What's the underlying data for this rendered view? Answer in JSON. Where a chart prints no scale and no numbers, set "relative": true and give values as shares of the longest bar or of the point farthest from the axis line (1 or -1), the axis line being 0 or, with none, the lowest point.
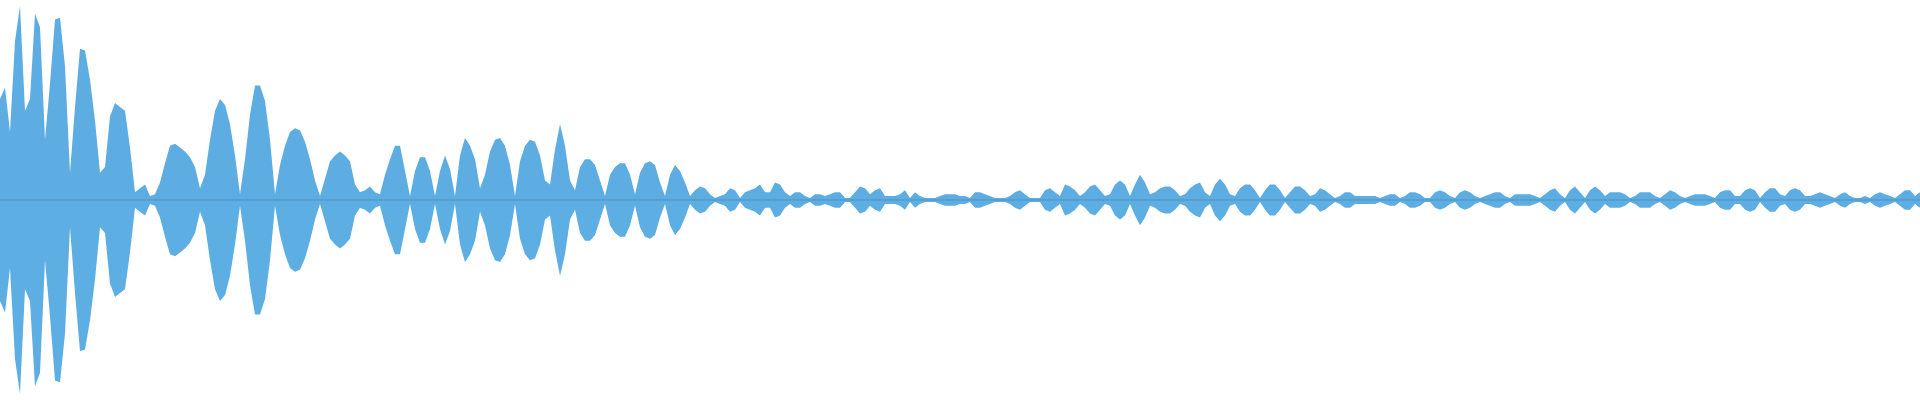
{
  "chart_data": {
    "type": "area",
    "relative": true,
    "categories": [
      null,
      null,
      null,
      null,
      null,
      null,
      null,
      null,
      null,
      null,
      null,
      null,
      null,
      null,
      null,
      null,
      null,
      null,
      null,
      null,
      null,
      null,
      null,
      null,
      null,
      null,
      null,
      null,
      null,
      null,
      null,
      null,
      null,
      null,
      null,
      null,
      null,
      null,
      null,
      null,
      null,
      null,
      null,
      null,
      null,
      null,
      null,
      null,
      null,
      null,
      null,
      null,
      null,
      null,
      null,
      null,
      null,
      null,
      null,
      null,
      null,
      null,
      null,
      null,
      null,
      null,
      null,
      null,
      null,
      null,
      null,
      null,
      null,
      null,
      null,
      null,
      null,
      null,
      null,
      null,
      null,
      null,
      null,
      null,
      null,
      null,
      null,
      null,
      null,
      null,
      null,
      null,
      null,
      null,
      null,
      null,
      null,
      null,
      null,
      null,
      null,
      null,
      null,
      null,
      null,
      null,
      null,
      null,
      null,
      null,
      null,
      null,
      null,
      null,
      null,
      null,
      null,
      null,
      null,
      null,
      null,
      null,
      null,
      null,
      null,
      null,
      null,
      null,
      null,
      null,
      null,
      null,
      null,
      null,
      null,
      null,
      null,
      null,
      null,
      null,
      null,
      null,
      null,
      null,
      null,
      null,
      null,
      null,
      null,
      null,
      null,
      null,
      null,
      null,
      null,
      null,
      null,
      null,
      null,
      null,
      null,
      null,
      null,
      null,
      null,
      null,
      null,
      null,
      null,
      null,
      null,
      null,
      null,
      null,
      null,
      null,
      null,
      null,
      null,
      null,
      null,
      null,
      null,
      null,
      null,
      null,
      null,
      null,
      null,
      null,
      null,
      null,
      null,
      null,
      null,
      null,
      null,
      null,
      null,
      null,
      null,
      null,
      null,
      null,
      null,
      null,
      null,
      null,
      null,
      null,
      null,
      null,
      null,
      null,
      null,
      null,
      null,
      null,
      null,
      null,
      null,
      null,
      null,
      null,
      null,
      null,
      null,
      null,
      null,
      null,
      null,
      null,
      null,
      null,
      null,
      null,
      null,
      null,
      null,
      null,
      null,
      null,
      null,
      null,
      null,
      null,
      null,
      null,
      null,
      null,
      null,
      null,
      null,
      null,
      null,
      null,
      null,
      null,
      null,
      null,
      null,
      null,
      null,
      null,
      null,
      null,
      null,
      null,
      null,
      null,
      null,
      null,
      null,
      null,
      null,
      null,
      null,
      null,
      null,
      null,
      null,
      null,
      null,
      null,
      null,
      null,
      null,
      null,
      null,
      null,
      null,
      null,
      null,
      null,
      null,
      null,
      null,
      null,
      null,
      null,
      null,
      null,
      null,
      null,
      null,
      null,
      null,
      null,
      null,
      null,
      null,
      null,
      null,
      null,
      null,
      null,
      null,
      null,
      null,
      null,
      null,
      null,
      null,
      null,
      null,
      null,
      null,
      null,
      null,
      null,
      null,
      null,
      null,
      null,
      null,
      null,
      null,
      null,
      null,
      null,
      null,
      null,
      null,
      null,
      null,
      null,
      null,
      null,
      null,
      null,
      null,
      null,
      null,
      null,
      null,
      null,
      null,
      null,
      null,
      null,
      null,
      null,
      null,
      null,
      null,
      null,
      null,
      null,
      null,
      null,
      null,
      null,
      null,
      null,
      null,
      null,
      null,
      null,
      null,
      null,
      null,
      null,
      null,
      null,
      null
    ],
    "series": [
      {
        "color": "#5dade2",
        "values": [
          0.52,
          0.58,
          0.35,
          0.82,
          1,
          0.46,
          0.52,
          0.96,
          0.89,
          0.31,
          0.6,
          0.93,
          0.94,
          0.69,
          0.14,
          0.48,
          0.78,
          0.77,
          0.62,
          0.41,
          0.14,
          0.17,
          0.43,
          0.5,
          0.48,
          0.46,
          0.27,
          0.04,
          0.06,
          0.08,
          0.02,
          0.03,
          0.09,
          0.19,
          0.28,
          0.29,
          0.27,
          0.25,
          0.22,
          0.17,
          0.06,
          0.13,
          0.31,
          0.46,
          0.52,
          0.49,
          0.39,
          0.23,
          0.03,
          0.21,
          0.44,
          0.59,
          0.59,
          0.51,
          0.31,
          0.03,
          0.18,
          0.28,
          0.35,
          0.37,
          0.36,
          0.3,
          0.21,
          0.1,
          0.02,
          0.11,
          0.2,
          0.23,
          0.25,
          0.23,
          0.2,
          0.08,
          0.04,
          0.05,
          0.07,
          0.04,
          0.03,
          0.13,
          0.21,
          0.28,
          0.28,
          0.15,
          0.02,
          0.15,
          0.22,
          0.22,
          0.15,
          0.02,
          0.15,
          0.23,
          0.16,
          0.02,
          0.23,
          0.32,
          0.28,
          0.21,
          0.06,
          0.13,
          0.25,
          0.31,
          0.32,
          0.28,
          0.18,
          0.02,
          0.2,
          0.28,
          0.31,
          0.3,
          0.23,
          0.1,
          0.08,
          0.26,
          0.39,
          0.28,
          0.1,
          0.05,
          0.17,
          0.21,
          0.21,
          0.18,
          0.1,
          0.02,
          0.13,
          0.17,
          0.19,
          0.19,
          0.13,
          0.03,
          0.14,
          0.19,
          0.2,
          0.18,
          0.09,
          0.02,
          0.13,
          0.18,
          0.15,
          0.09,
          0.02,
          0.05,
          0.07,
          0.06,
          0.03,
          0.01,
          0.02,
          0.03,
          0.06,
          0.05,
          0.01,
          0.04,
          0.05,
          0.06,
          0.08,
          0.04,
          0.04,
          0.09,
          0.08,
          0.04,
          0.02,
          0.04,
          0.04,
          0.02,
          0.01,
          0.03,
          0.03,
          0.02,
          0.03,
          0.04,
          0.04,
          0.01,
          0.01,
          0.04,
          0.07,
          0.06,
          0.03,
          0.05,
          0.06,
          0.02,
          0.02,
          0.02,
          0.03,
          0.05,
          0.01,
          0.04,
          0.02,
          0.01,
          0.01,
          0.01,
          0.02,
          0.03,
          0.03,
          0.03,
          0.02,
          0.02,
          0.01,
          0.04,
          0.04,
          0.03,
          0.02,
          0.01,
          0.01,
          0.01,
          0.02,
          0.04,
          0.05,
          0.03,
          0.01,
          0.01,
          0.01,
          0.05,
          0.06,
          0.04,
          0.02,
          0.08,
          0.07,
          0.05,
          0.02,
          0.04,
          0.07,
          0.08,
          0.05,
          0.02,
          0.03,
          0.08,
          0.1,
          0.08,
          0.02,
          0.08,
          0.13,
          0.09,
          0.03,
          0.04,
          0.06,
          0.07,
          0.07,
          0.05,
          0.02,
          0.03,
          0.06,
          0.08,
          0.09,
          0.04,
          0.02,
          0.08,
          0.11,
          0.08,
          0.03,
          0.02,
          0.06,
          0.08,
          0.08,
          0.05,
          0.01,
          0.05,
          0.08,
          0.08,
          0.05,
          0.01,
          0.04,
          0.07,
          0.07,
          0.05,
          0.02,
          0.03,
          0.06,
          0.05,
          0.03,
          0.01,
          0.02,
          0.04,
          0.04,
          0.02,
          0.02,
          0.02,
          0.02,
          0.02,
          0.01,
          0.02,
          0.03,
          0.03,
          0.01,
          0.02,
          0.04,
          0.04,
          0.03,
          0.01,
          0.01,
          0.04,
          0.05,
          0.04,
          0.02,
          0.01,
          0.04,
          0.05,
          0.04,
          0.02,
          0.01,
          0.02,
          0.03,
          0.04,
          0.04,
          0.02,
          0.01,
          0.03,
          0.03,
          0.03,
          0.03,
          0.02,
          0.01,
          0.03,
          0.05,
          0.06,
          0.03,
          0.01,
          0.05,
          0.07,
          0.04,
          0.01,
          0.05,
          0.07,
          0.05,
          0.02,
          0.04,
          0.04,
          0.04,
          0.03,
          0.01,
          0.02,
          0.04,
          0.04,
          0.04,
          0.02,
          0.01,
          0.03,
          0.05,
          0.04,
          0.02,
          0.01,
          0.02,
          0.03,
          0.03,
          0.03,
          0.02,
          0.01,
          0.04,
          0.05,
          0.05,
          0.02,
          0.02,
          0.05,
          0.06,
          0.05,
          0.01,
          0.04,
          0.06,
          0.06,
          0.03,
          0.02,
          0.05,
          0.06,
          0.05,
          0.02,
          0.02,
          0.03,
          0.04,
          0.03,
          0.02,
          0.01,
          0.03,
          0.04,
          0.02,
          0.01,
          0.01,
          0.02,
          0.01,
          0.03,
          0.04,
          0.03,
          0.02,
          0.01,
          0.03,
          0.05,
          0.05,
          0.02,
          0.04
        ]
      },
      {
        "color": "#5caee3",
        "values": [
          -0.52,
          -0.58,
          -0.35,
          -0.82,
          -1,
          -0.46,
          -0.52,
          -0.96,
          -0.89,
          -0.31,
          -0.6,
          -0.93,
          -0.94,
          -0.69,
          -0.14,
          -0.48,
          -0.78,
          -0.77,
          -0.62,
          -0.41,
          -0.14,
          -0.17,
          -0.43,
          -0.5,
          -0.48,
          -0.46,
          -0.27,
          -0.04,
          -0.06,
          -0.08,
          -0.02,
          -0.03,
          -0.09,
          -0.19,
          -0.28,
          -0.29,
          -0.27,
          -0.25,
          -0.22,
          -0.17,
          -0.06,
          -0.13,
          -0.31,
          -0.46,
          -0.52,
          -0.49,
          -0.39,
          -0.23,
          -0.03,
          -0.21,
          -0.44,
          -0.59,
          -0.59,
          -0.51,
          -0.31,
          -0.03,
          -0.18,
          -0.28,
          -0.35,
          -0.37,
          -0.36,
          -0.3,
          -0.21,
          -0.1,
          -0.02,
          -0.11,
          -0.2,
          -0.23,
          -0.25,
          -0.23,
          -0.2,
          -0.08,
          -0.04,
          -0.05,
          -0.07,
          -0.04,
          -0.03,
          -0.13,
          -0.21,
          -0.28,
          -0.28,
          -0.15,
          -0.02,
          -0.15,
          -0.22,
          -0.22,
          -0.15,
          -0.02,
          -0.15,
          -0.23,
          -0.16,
          -0.02,
          -0.23,
          -0.32,
          -0.28,
          -0.21,
          -0.06,
          -0.13,
          -0.25,
          -0.31,
          -0.32,
          -0.28,
          -0.18,
          -0.02,
          -0.2,
          -0.28,
          -0.31,
          -0.3,
          -0.23,
          -0.1,
          -0.08,
          -0.26,
          -0.39,
          -0.28,
          -0.1,
          -0.05,
          -0.17,
          -0.21,
          -0.21,
          -0.18,
          -0.1,
          -0.02,
          -0.13,
          -0.17,
          -0.19,
          -0.19,
          -0.13,
          -0.03,
          -0.14,
          -0.19,
          -0.2,
          -0.18,
          -0.09,
          -0.02,
          -0.13,
          -0.18,
          -0.15,
          -0.09,
          -0.02,
          -0.05,
          -0.07,
          -0.06,
          -0.03,
          -0.01,
          -0.02,
          -0.03,
          -0.06,
          -0.05,
          -0.01,
          -0.04,
          -0.05,
          -0.06,
          -0.08,
          -0.04,
          -0.04,
          -0.09,
          -0.08,
          -0.04,
          -0.02,
          -0.04,
          -0.04,
          -0.02,
          -0.01,
          -0.03,
          -0.03,
          -0.02,
          -0.03,
          -0.04,
          -0.04,
          -0.01,
          -0.01,
          -0.04,
          -0.07,
          -0.06,
          -0.03,
          -0.05,
          -0.06,
          -0.02,
          -0.02,
          -0.02,
          -0.03,
          -0.05,
          -0.01,
          -0.04,
          -0.02,
          -0.01,
          -0.01,
          -0.01,
          -0.02,
          -0.03,
          -0.03,
          -0.03,
          -0.02,
          -0.02,
          -0.01,
          -0.04,
          -0.04,
          -0.03,
          -0.02,
          -0.01,
          -0.01,
          -0.01,
          -0.02,
          -0.04,
          -0.05,
          -0.03,
          -0.01,
          -0.01,
          -0.01,
          -0.05,
          -0.06,
          -0.04,
          -0.02,
          -0.08,
          -0.07,
          -0.05,
          -0.02,
          -0.04,
          -0.07,
          -0.08,
          -0.05,
          -0.02,
          -0.03,
          -0.08,
          -0.1,
          -0.08,
          -0.02,
          -0.08,
          -0.13,
          -0.09,
          -0.03,
          -0.04,
          -0.06,
          -0.07,
          -0.07,
          -0.05,
          -0.02,
          -0.03,
          -0.06,
          -0.08,
          -0.09,
          -0.04,
          -0.02,
          -0.08,
          -0.11,
          -0.08,
          -0.03,
          -0.02,
          -0.06,
          -0.08,
          -0.08,
          -0.05,
          -0.01,
          -0.05,
          -0.08,
          -0.08,
          -0.05,
          -0.01,
          -0.04,
          -0.07,
          -0.07,
          -0.05,
          -0.02,
          -0.03,
          -0.06,
          -0.05,
          -0.03,
          -0.01,
          -0.02,
          -0.04,
          -0.04,
          -0.02,
          -0.02,
          -0.02,
          -0.02,
          -0.02,
          -0.01,
          -0.02,
          -0.03,
          -0.03,
          -0.01,
          -0.02,
          -0.04,
          -0.04,
          -0.03,
          -0.01,
          -0.01,
          -0.04,
          -0.05,
          -0.04,
          -0.02,
          -0.01,
          -0.04,
          -0.05,
          -0.04,
          -0.02,
          -0.01,
          -0.02,
          -0.03,
          -0.04,
          -0.04,
          -0.02,
          -0.01,
          -0.03,
          -0.03,
          -0.03,
          -0.03,
          -0.02,
          -0.01,
          -0.03,
          -0.05,
          -0.06,
          -0.03,
          -0.01,
          -0.05,
          -0.07,
          -0.04,
          -0.01,
          -0.05,
          -0.07,
          -0.05,
          -0.02,
          -0.04,
          -0.04,
          -0.04,
          -0.03,
          -0.01,
          -0.02,
          -0.04,
          -0.04,
          -0.04,
          -0.02,
          -0.01,
          -0.03,
          -0.05,
          -0.04,
          -0.02,
          -0.01,
          -0.02,
          -0.03,
          -0.03,
          -0.03,
          -0.02,
          -0.01,
          -0.04,
          -0.05,
          -0.05,
          -0.02,
          -0.02,
          -0.05,
          -0.06,
          -0.05,
          -0.01,
          -0.04,
          -0.06,
          -0.06,
          -0.03,
          -0.02,
          -0.05,
          -0.06,
          -0.05,
          -0.02,
          -0.02,
          -0.03,
          -0.04,
          -0.03,
          -0.02,
          -0.01,
          -0.03,
          -0.04,
          -0.02,
          -0.01,
          -0.01,
          -0.02,
          -0.01,
          -0.03,
          -0.04,
          -0.03,
          -0.02,
          -0.01,
          -0.03,
          -0.05,
          -0.05,
          -0.02,
          -0.04
        ]
      }
    ],
    "ref_lines": [
      {
        "axis": "y",
        "value": 0,
        "color": "#4e91bd"
      }
    ]
  }
}
